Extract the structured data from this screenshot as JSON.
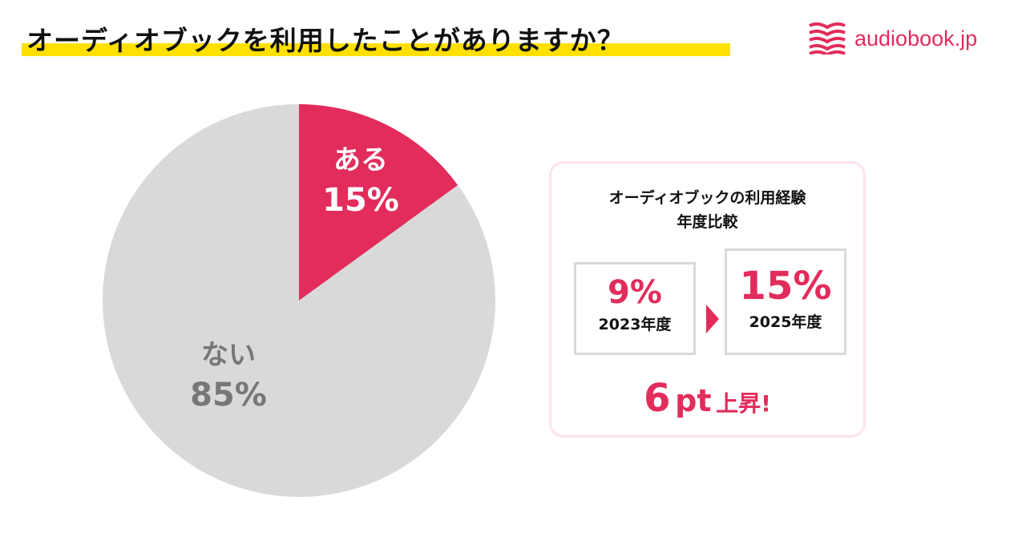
{
  "header": {
    "title": "オーディオブックを利用したことがありますか？",
    "logo_text": "audiobook.jp"
  },
  "colors": {
    "accent": "#e22c5b",
    "gray": "#d9d9d9",
    "highlight": "#ffe000"
  },
  "chart_data": {
    "type": "pie",
    "title": "オーディオブックを利用したことがありますか？",
    "slices": [
      {
        "label": "ある",
        "value": 15,
        "value_label": "15%",
        "color": "#e22c5b"
      },
      {
        "label": "ない",
        "value": 85,
        "value_label": "85%",
        "color": "#d9d9d9"
      }
    ]
  },
  "comparison": {
    "title_line1": "オーディオブックの利用経験",
    "title_line2": "年度比較",
    "before": {
      "value": "9%",
      "year": "2023年度"
    },
    "after": {
      "value": "15%",
      "year": "2025年度"
    },
    "rise": {
      "number": "6",
      "unit": "pt",
      "suffix": "上昇!"
    }
  }
}
